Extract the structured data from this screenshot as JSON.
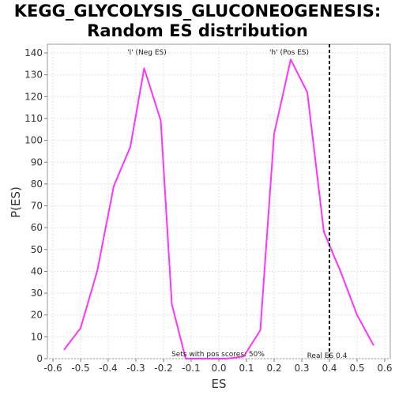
{
  "chart_data": {
    "type": "line",
    "title_line1": "KEGG_GLYCOLYSIS_GLUCONEOGENESIS:",
    "title_line2": "Random ES distribution",
    "xlabel": "ES",
    "ylabel": "P(ES)",
    "xlim": [
      -0.62,
      0.62
    ],
    "ylim": [
      0,
      144
    ],
    "x_ticks": [
      -0.6,
      -0.5,
      -0.4,
      -0.3,
      -0.2,
      -0.1,
      0.0,
      0.1,
      0.2,
      0.3,
      0.4,
      0.5,
      0.6
    ],
    "x_tick_labels": [
      "-0.6",
      "-0.5",
      "-0.4",
      "-0.3",
      "-0.2",
      "-0.1",
      "0.0",
      "0.1",
      "0.2",
      "0.3",
      "0.4",
      "0.5",
      "0.6"
    ],
    "y_ticks": [
      0,
      10,
      20,
      30,
      40,
      50,
      60,
      70,
      80,
      90,
      100,
      110,
      120,
      130,
      140
    ],
    "y_tick_labels": [
      "0",
      "10",
      "20",
      "30",
      "40",
      "50",
      "60",
      "70",
      "80",
      "90",
      "100",
      "110",
      "120",
      "130",
      "140"
    ],
    "grid": true,
    "series": [
      {
        "color": "#ff33ff",
        "x": [
          -0.56,
          -0.5,
          -0.44,
          -0.38,
          -0.32,
          -0.27,
          -0.21,
          -0.17,
          -0.12,
          -0.1,
          -0.02,
          0.03,
          0.09,
          0.15,
          0.2,
          0.26,
          0.32,
          0.38,
          0.44,
          0.5,
          0.56
        ],
        "y": [
          4,
          14,
          40,
          79,
          97,
          133,
          109,
          25,
          0,
          0,
          0,
          0,
          1,
          13,
          103,
          137,
          122,
          58,
          40,
          20,
          6
        ]
      }
    ],
    "vertical_line": {
      "x": 0.4,
      "style": "dashed",
      "color": "#000000"
    },
    "annotations": {
      "neg_label": "'l' (Neg ES)",
      "neg_color": "#3333cc",
      "pos_label": "'h' (Pos ES)",
      "pos_color": "#cc0000",
      "pos_scores_text": "Sets with pos scores: 50%",
      "real_es_text": "Real ES 0.4"
    }
  }
}
